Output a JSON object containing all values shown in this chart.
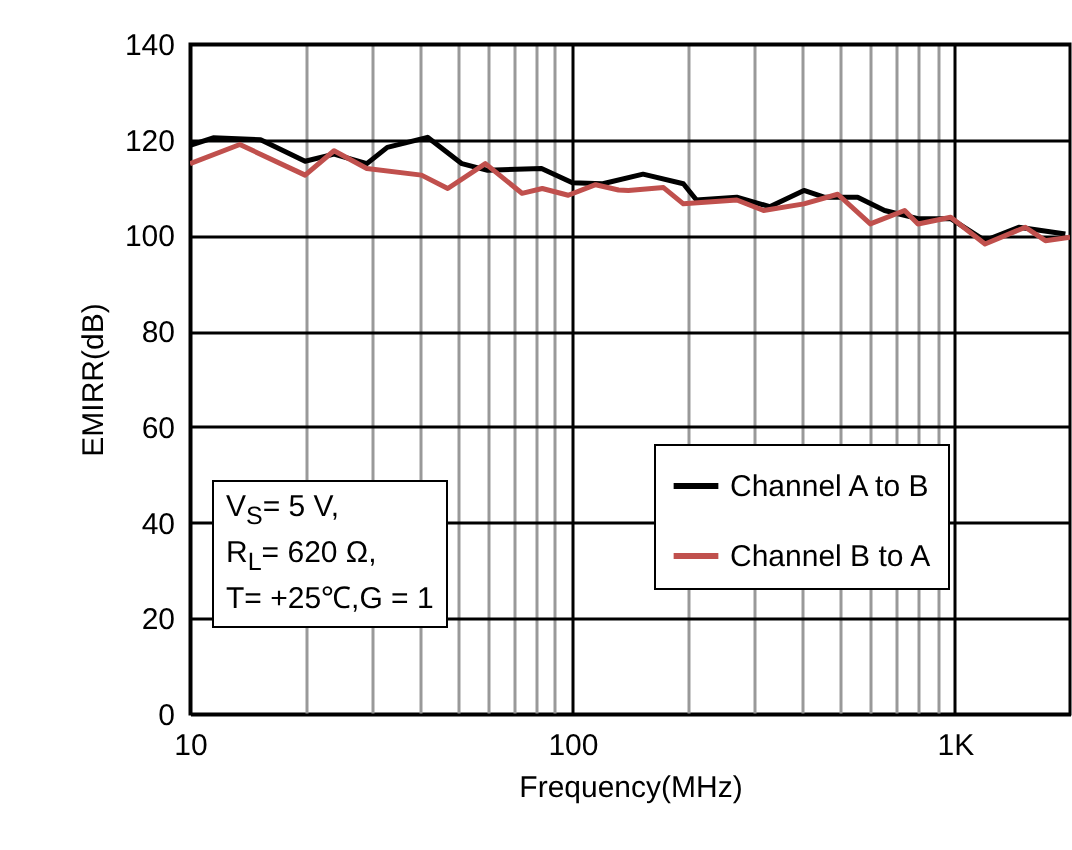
{
  "chart_data": {
    "type": "line",
    "xlabel": "Frequency(MHz)",
    "ylabel": "EMIRR(dB)",
    "log": "x",
    "grid": true,
    "legend": "right",
    "line_style": "solid",
    "xlim": [
      10,
      2000
    ],
    "ylim": [
      0,
      140
    ],
    "xticks": [
      10,
      {
        "value": 20,
        "label": null
      },
      {
        "value": 30,
        "label": null
      },
      {
        "value": 40,
        "label": null
      },
      {
        "value": 50,
        "label": null
      },
      {
        "value": 60,
        "label": null
      },
      {
        "value": 70,
        "label": null
      },
      {
        "value": 80,
        "label": null
      },
      {
        "value": 90,
        "label": null
      },
      100,
      {
        "value": 200,
        "label": null
      },
      {
        "value": 300,
        "label": null
      },
      {
        "value": 400,
        "label": null
      },
      {
        "value": 500,
        "label": null
      },
      {
        "value": 600,
        "label": null
      },
      {
        "value": 700,
        "label": null
      },
      {
        "value": 800,
        "label": null
      },
      {
        "value": 900,
        "label": null
      },
      {
        "value": 1000,
        "label": "1K"
      }
    ],
    "yticks": [
      0,
      20,
      40,
      60,
      80,
      100,
      120,
      140
    ],
    "annotations": [
      "V$_{S}$= 5 V,",
      "R$_{L}$= 620 Ω,",
      "T= +25℃,G = 1"
    ],
    "series": [
      {
        "name": "Channel A to B",
        "color": "#000000",
        "x": [
          10,
          11.5,
          15.3,
          20,
          23.8,
          29,
          32.8,
          41.8,
          51.4,
          60,
          83,
          100,
          120,
          153,
          195,
          211,
          269,
          328,
          403,
          455,
          557,
          655,
          801,
          975,
          1199,
          1469,
          1945
        ],
        "values": [
          118.8,
          120.4,
          120,
          115.5,
          117,
          115,
          118.4,
          120.5,
          115,
          113.6,
          114,
          111,
          110.8,
          112.8,
          110.8,
          107.4,
          108,
          106,
          109.4,
          108,
          108,
          105.2,
          103.5,
          103.5,
          98.9,
          101.7,
          100.3
        ]
      },
      {
        "name": "Channel B to A",
        "color": "#c0504d",
        "x": [
          10,
          13.5,
          20,
          23.8,
          29,
          40.3,
          47.2,
          59.2,
          73.8,
          83.4,
          97.5,
          115,
          132,
          140,
          173,
          195,
          269,
          316,
          403,
          494,
          601,
          739,
          801,
          975,
          1199,
          1528,
          1725,
          2000
        ],
        "values": [
          115,
          119,
          112.6,
          117.7,
          114,
          112.6,
          109.8,
          115,
          108.8,
          109.8,
          108.4,
          110.6,
          109.5,
          109.4,
          110,
          106.6,
          107.4,
          105.2,
          106.6,
          108.6,
          102.4,
          105.2,
          102.4,
          103.8,
          98.2,
          101.7,
          98.9,
          99.6
        ]
      }
    ]
  }
}
